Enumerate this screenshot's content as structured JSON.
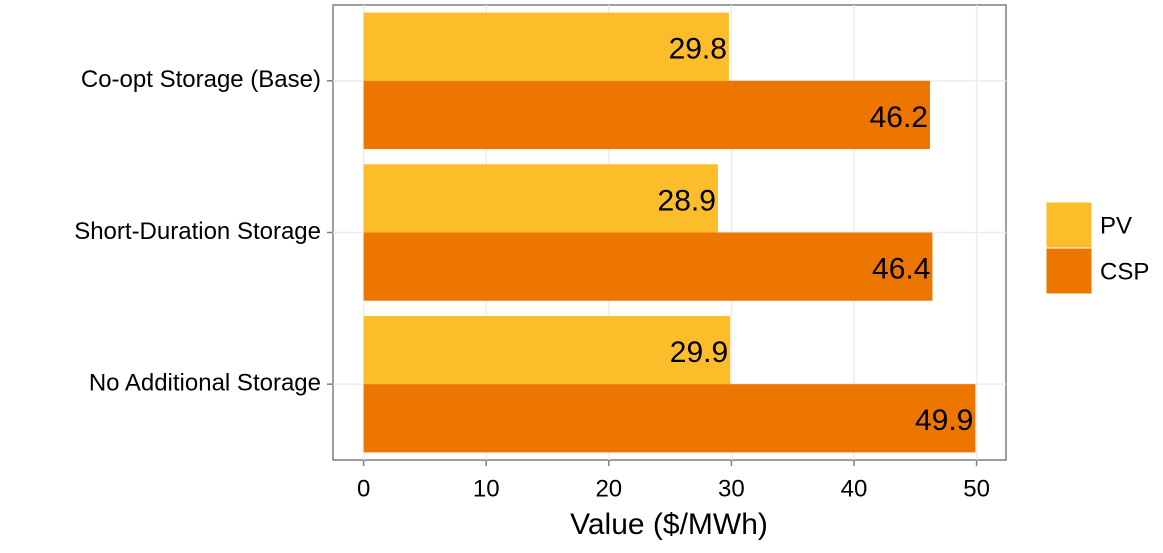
{
  "chart_data": {
    "type": "bar",
    "orientation": "horizontal",
    "x_label": "Value ($/MWh)",
    "categories": [
      "Co-opt Storage (Base)",
      "Short-Duration Storage",
      "No Additional Storage"
    ],
    "series": [
      {
        "name": "PV",
        "color": "#fcbd2a",
        "values": [
          29.8,
          28.9,
          29.9
        ]
      },
      {
        "name": "CSP",
        "color": "#ed7600",
        "values": [
          46.2,
          46.4,
          49.9
        ]
      }
    ],
    "xlim": [
      -2.5,
      52.4
    ],
    "xticks": [
      0,
      10,
      20,
      30,
      40,
      50
    ],
    "grid": true,
    "legend": "right"
  }
}
